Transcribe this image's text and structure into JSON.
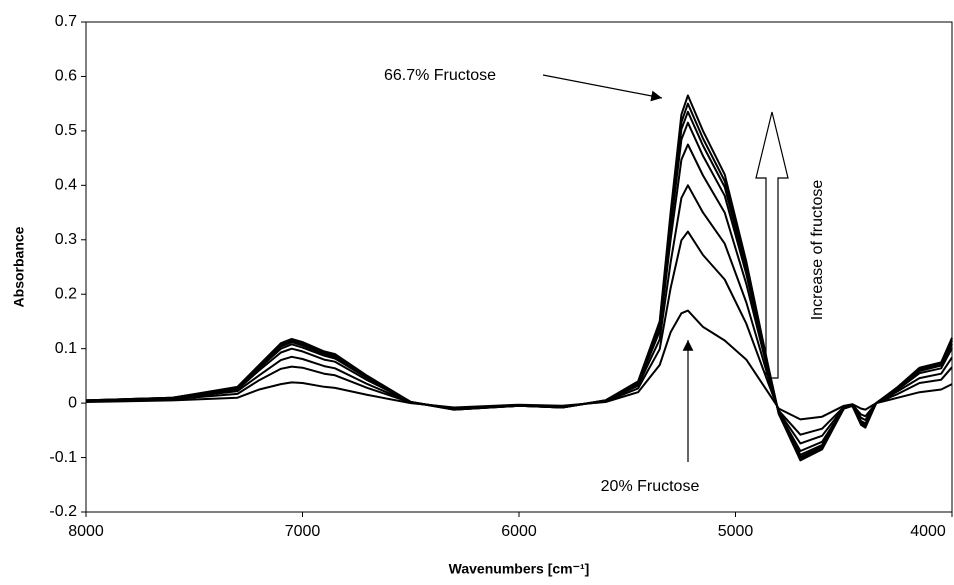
{
  "chart_data": {
    "type": "line",
    "x_label": "Wavenumbers [cm⁻¹]",
    "y_label": "Absorbance",
    "annotations": [
      "66.7% Fructose",
      "20% Fructose",
      "Increase of fructose"
    ],
    "x": [
      8000,
      7600,
      7300,
      7200,
      7100,
      7050,
      7000,
      6900,
      6850,
      6700,
      6500,
      6300,
      6000,
      5800,
      5600,
      5450,
      5350,
      5300,
      5250,
      5220,
      5150,
      5050,
      4950,
      4850,
      4800,
      4700,
      4600,
      4500,
      4460,
      4420,
      4400,
      4350,
      4250,
      4150,
      4050,
      4000
    ],
    "xlim": [
      8000,
      4000
    ],
    "xticks": [
      8000,
      7000,
      6000,
      5000,
      4000
    ],
    "ylim": [
      -0.2,
      0.7
    ],
    "yticks": [
      -0.2,
      -0.1,
      0,
      0.1,
      0.2,
      0.3,
      0.4,
      0.5,
      0.6,
      0.7
    ],
    "grid": false,
    "series": [
      {
        "color": "#000000",
        "values": [
          0.002,
          0.005,
          0.01,
          0.025,
          0.035,
          0.038,
          0.037,
          0.03,
          0.028,
          0.015,
          0.0,
          -0.008,
          -0.003,
          -0.005,
          0.002,
          0.02,
          0.07,
          0.13,
          0.165,
          0.17,
          0.14,
          0.115,
          0.08,
          0.02,
          -0.01,
          -0.03,
          -0.025,
          -0.005,
          -0.002,
          -0.01,
          -0.012,
          0.0,
          0.01,
          0.02,
          0.025,
          0.035
        ]
      },
      {
        "color": "#000000",
        "values": [
          0.003,
          0.007,
          0.017,
          0.042,
          0.063,
          0.067,
          0.065,
          0.054,
          0.051,
          0.028,
          0.001,
          -0.009,
          -0.004,
          -0.006,
          0.003,
          0.027,
          0.099,
          0.211,
          0.299,
          0.315,
          0.272,
          0.227,
          0.146,
          0.038,
          -0.014,
          -0.058,
          -0.047,
          -0.007,
          -0.003,
          -0.021,
          -0.024,
          0,
          0.017,
          0.037,
          0.043,
          0.066
        ]
      },
      {
        "color": "#000000",
        "values": [
          0.004,
          0.008,
          0.022,
          0.051,
          0.079,
          0.085,
          0.081,
          0.068,
          0.064,
          0.035,
          0.001,
          -0.01,
          -0.004,
          -0.007,
          0.004,
          0.032,
          0.117,
          0.258,
          0.377,
          0.4,
          0.35,
          0.293,
          0.185,
          0.049,
          -0.016,
          -0.074,
          -0.06,
          -0.008,
          -0.004,
          -0.027,
          -0.031,
          0,
          0.022,
          0.046,
          0.054,
          0.084
        ]
      },
      {
        "color": "#000000",
        "values": [
          0.004,
          0.009,
          0.025,
          0.06,
          0.093,
          0.1,
          0.095,
          0.08,
          0.076,
          0.042,
          0.002,
          -0.011,
          -0.005,
          -0.007,
          0.004,
          0.035,
          0.132,
          0.3,
          0.447,
          0.475,
          0.418,
          0.35,
          0.219,
          0.059,
          -0.018,
          -0.088,
          -0.071,
          -0.009,
          -0.004,
          -0.033,
          -0.037,
          0,
          0.025,
          0.055,
          0.064,
          0.101
        ]
      },
      {
        "color": "#000000",
        "values": [
          0.005,
          0.009,
          0.027,
          0.064,
          0.1,
          0.108,
          0.102,
          0.087,
          0.082,
          0.046,
          0.002,
          -0.011,
          -0.005,
          -0.008,
          0.005,
          0.037,
          0.14,
          0.322,
          0.484,
          0.515,
          0.454,
          0.381,
          0.237,
          0.064,
          -0.019,
          -0.095,
          -0.077,
          -0.009,
          -0.005,
          -0.036,
          -0.041,
          0,
          0.027,
          0.059,
          0.069,
          0.109
        ]
      },
      {
        "color": "#000000",
        "values": [
          0.005,
          0.01,
          0.028,
          0.067,
          0.104,
          0.112,
          0.106,
          0.09,
          0.085,
          0.047,
          0.002,
          -0.012,
          -0.005,
          -0.008,
          0.005,
          0.038,
          0.144,
          0.333,
          0.503,
          0.535,
          0.473,
          0.397,
          0.246,
          0.066,
          -0.019,
          -0.099,
          -0.08,
          -0.01,
          -0.005,
          -0.038,
          -0.042,
          0,
          0.028,
          0.062,
          0.071,
          0.114
        ]
      },
      {
        "color": "#000000",
        "values": [
          0.005,
          0.01,
          0.029,
          0.068,
          0.107,
          0.115,
          0.109,
          0.093,
          0.088,
          0.049,
          0.002,
          -0.012,
          -0.005,
          -0.008,
          0.005,
          0.039,
          0.147,
          0.342,
          0.516,
          0.55,
          0.486,
          0.408,
          0.253,
          0.068,
          -0.02,
          -0.102,
          -0.083,
          -0.01,
          -0.005,
          -0.039,
          -0.043,
          0,
          0.029,
          0.063,
          0.073,
          0.117
        ]
      },
      {
        "color": "#000000",
        "values": [
          0.005,
          0.01,
          0.03,
          0.07,
          0.11,
          0.118,
          0.112,
          0.095,
          0.09,
          0.05,
          0.002,
          -0.012,
          -0.005,
          -0.008,
          0.005,
          0.04,
          0.15,
          0.35,
          0.53,
          0.565,
          0.5,
          0.42,
          0.26,
          0.07,
          -0.02,
          -0.105,
          -0.085,
          -0.01,
          -0.005,
          -0.04,
          -0.045,
          0.0,
          0.03,
          0.065,
          0.075,
          0.12
        ]
      }
    ]
  }
}
